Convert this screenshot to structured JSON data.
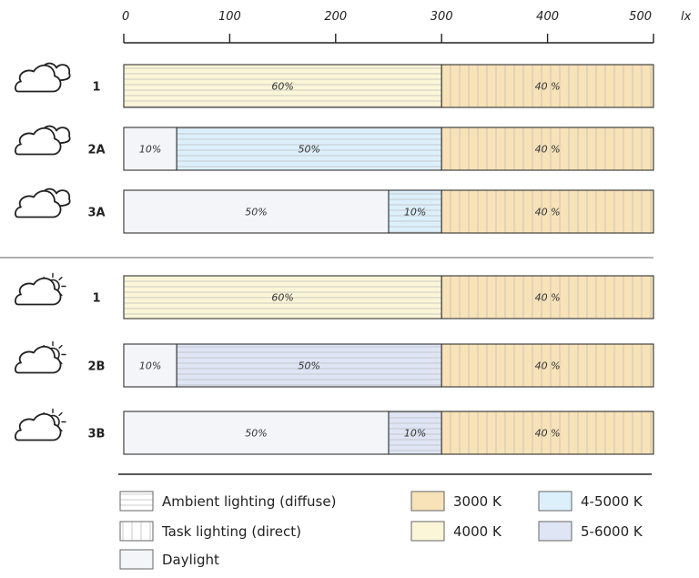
{
  "chart_data": {
    "type": "bar",
    "orientation": "horizontal",
    "stacked": true,
    "x_unit": "lx",
    "xlim": [
      0,
      500
    ],
    "x_ticks": [
      0,
      100,
      200,
      300,
      400,
      500
    ],
    "groups": [
      {
        "weather_icon": "cloud-icon",
        "rows": [
          {
            "label": "1",
            "segments": [
              {
                "start": 0,
                "end": 300,
                "label": "60%",
                "lighting": "ambient",
                "color_temp": "4000 K"
              },
              {
                "start": 300,
                "end": 500,
                "label": "40 %",
                "lighting": "task",
                "color_temp": "3000 K"
              }
            ]
          },
          {
            "label": "2A",
            "segments": [
              {
                "start": 0,
                "end": 50,
                "label": "10%",
                "lighting": "daylight",
                "color_temp": ""
              },
              {
                "start": 50,
                "end": 300,
                "label": "50%",
                "lighting": "ambient",
                "color_temp": "4-5000 K"
              },
              {
                "start": 300,
                "end": 500,
                "label": "40 %",
                "lighting": "task",
                "color_temp": "3000 K"
              }
            ]
          },
          {
            "label": "3A",
            "segments": [
              {
                "start": 0,
                "end": 250,
                "label": "50%",
                "lighting": "daylight",
                "color_temp": ""
              },
              {
                "start": 250,
                "end": 300,
                "label": "10%",
                "lighting": "ambient",
                "color_temp": "4-5000 K"
              },
              {
                "start": 300,
                "end": 500,
                "label": "40 %",
                "lighting": "task",
                "color_temp": "3000 K"
              }
            ]
          }
        ]
      },
      {
        "weather_icon": "cloud-sun-icon",
        "rows": [
          {
            "label": "1",
            "segments": [
              {
                "start": 0,
                "end": 300,
                "label": "60%",
                "lighting": "ambient",
                "color_temp": "4000 K"
              },
              {
                "start": 300,
                "end": 500,
                "label": "40 %",
                "lighting": "task",
                "color_temp": "3000 K"
              }
            ]
          },
          {
            "label": "2B",
            "segments": [
              {
                "start": 0,
                "end": 50,
                "label": "10%",
                "lighting": "daylight",
                "color_temp": ""
              },
              {
                "start": 50,
                "end": 300,
                "label": "50%",
                "lighting": "ambient",
                "color_temp": "5-6000 K"
              },
              {
                "start": 300,
                "end": 500,
                "label": "40 %",
                "lighting": "task",
                "color_temp": "3000 K"
              }
            ]
          },
          {
            "label": "3B",
            "segments": [
              {
                "start": 0,
                "end": 250,
                "label": "50%",
                "lighting": "daylight",
                "color_temp": ""
              },
              {
                "start": 250,
                "end": 300,
                "label": "10%",
                "lighting": "ambient",
                "color_temp": "5-6000 K"
              },
              {
                "start": 300,
                "end": 500,
                "label": "40 %",
                "lighting": "task",
                "color_temp": "3000 K"
              }
            ]
          }
        ]
      }
    ],
    "legend": {
      "placement": "bottom",
      "patterns": [
        {
          "key": "ambient",
          "label": "Ambient lighting (diffuse)"
        },
        {
          "key": "task",
          "label": "Task lighting (direct)"
        },
        {
          "key": "daylight",
          "label": "Daylight"
        }
      ],
      "colors": [
        {
          "label": "3000 K",
          "color": "#f8e2b8"
        },
        {
          "label": "4000 K",
          "color": "#fcf6d8"
        },
        {
          "label": "4-5000 K",
          "color": "#dcf0fb"
        },
        {
          "label": "5-6000 K",
          "color": "#dfe5f4"
        }
      ]
    },
    "daylight_color": "#f3f5f8"
  }
}
